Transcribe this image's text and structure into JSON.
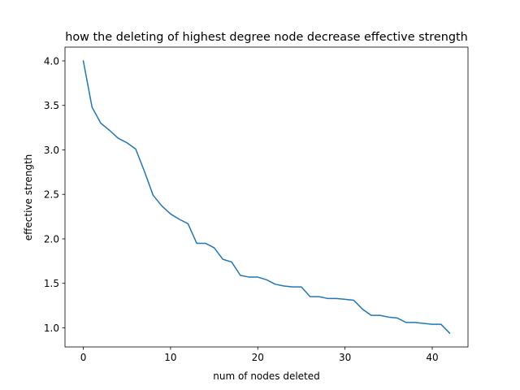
{
  "chart_data": {
    "type": "line",
    "title": "how the deleting of highest degree node decrease effective strength",
    "xlabel": "num of nodes deleted",
    "ylabel": "effective strength",
    "xlim": [
      -2.1,
      44.1
    ],
    "ylim": [
      0.785,
      4.155
    ],
    "xticks": [
      0,
      10,
      20,
      30,
      40
    ],
    "xtick_labels": [
      "0",
      "10",
      "20",
      "30",
      "40"
    ],
    "yticks": [
      1.0,
      1.5,
      2.0,
      2.5,
      3.0,
      3.5,
      4.0
    ],
    "ytick_labels": [
      "1.0",
      "1.5",
      "2.0",
      "2.5",
      "3.0",
      "3.5",
      "4.0"
    ],
    "grid": false,
    "legend": "none",
    "series": [
      {
        "color": "#1f77b4",
        "x": [
          0,
          1,
          2,
          3,
          4,
          5,
          6,
          7,
          8,
          9,
          10,
          11,
          12,
          13,
          14,
          15,
          16,
          17,
          18,
          19,
          20,
          21,
          22,
          23,
          24,
          25,
          26,
          27,
          28,
          29,
          30,
          31,
          32,
          33,
          34,
          35,
          36,
          37,
          38,
          39,
          40,
          41,
          42
        ],
        "y": [
          4.0,
          3.48,
          3.3,
          3.22,
          3.13,
          3.08,
          3.01,
          2.76,
          2.49,
          2.37,
          2.28,
          2.22,
          2.17,
          1.95,
          1.95,
          1.9,
          1.77,
          1.74,
          1.59,
          1.57,
          1.57,
          1.54,
          1.49,
          1.47,
          1.46,
          1.46,
          1.35,
          1.35,
          1.33,
          1.33,
          1.32,
          1.31,
          1.21,
          1.14,
          1.14,
          1.12,
          1.11,
          1.06,
          1.06,
          1.05,
          1.04,
          1.04,
          0.94
        ]
      }
    ]
  }
}
